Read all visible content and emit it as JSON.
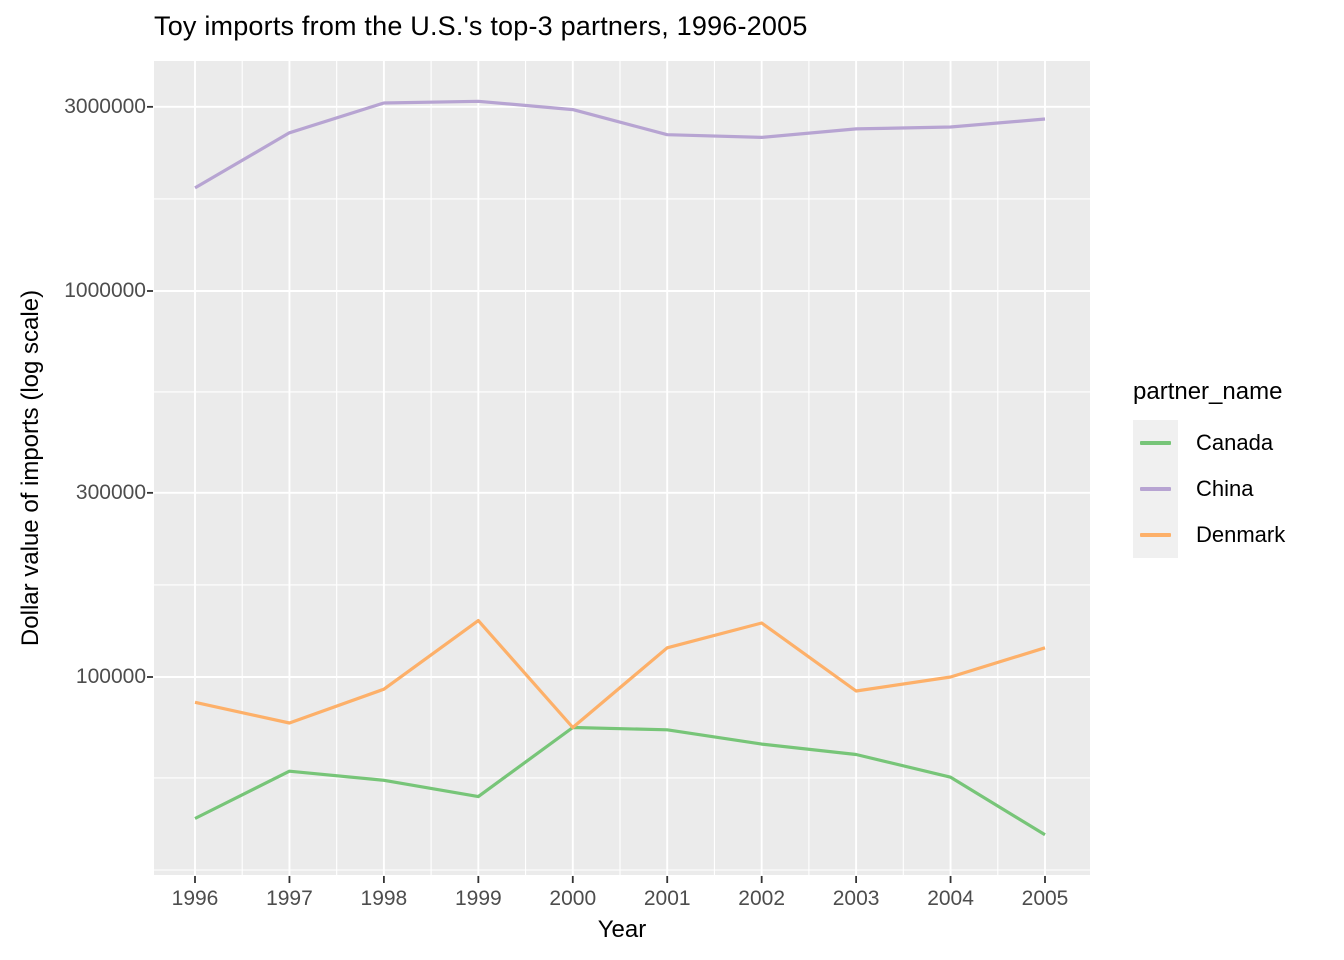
{
  "title": "Toy imports from the U.S.'s top-3 partners, 1996-2005",
  "axes": {
    "x": {
      "title": "Year",
      "tick_labels": [
        "1996",
        "1997",
        "1998",
        "1999",
        "2000",
        "2001",
        "2002",
        "2003",
        "2004",
        "2005"
      ]
    },
    "y": {
      "title": "Dollar value of imports (log scale)",
      "tick_labels": [
        "3000000",
        "1000000",
        "300000",
        "100000"
      ]
    }
  },
  "legend": {
    "title": "partner_name",
    "entries": [
      {
        "label": "Canada",
        "color": "#77c578"
      },
      {
        "label": "China",
        "color": "#b7a4d2"
      },
      {
        "label": "Denmark",
        "color": "#fdb069"
      }
    ]
  },
  "colors": {
    "panel_background": "#ebebeb",
    "gridline": "#ffffff",
    "tick_mark": "#333333",
    "tick_text": "#4d4d4d",
    "title_text": "#000000",
    "legend_key_background": "#f0f0f0"
  },
  "chart_data": {
    "type": "line",
    "title": "Toy imports from the U.S.'s top-3 partners, 1996-2005",
    "xlabel": "Year",
    "ylabel": "Dollar value of imports (log scale)",
    "y_scale": "log10",
    "x": [
      1996,
      1997,
      1998,
      1999,
      2000,
      2001,
      2002,
      2003,
      2004,
      2005
    ],
    "series": [
      {
        "name": "Canada",
        "color": "#77c578",
        "values": [
          43000,
          57000,
          54000,
          49000,
          74000,
          73000,
          67000,
          63000,
          55000,
          39000
        ]
      },
      {
        "name": "China",
        "color": "#b7a4d2",
        "values": [
          1850000,
          2570000,
          3070000,
          3100000,
          2950000,
          2540000,
          2500000,
          2630000,
          2660000,
          2790000
        ]
      },
      {
        "name": "Denmark",
        "color": "#fdb069",
        "values": [
          86000,
          76000,
          93000,
          140000,
          74000,
          119000,
          138000,
          92000,
          100000,
          119000
        ]
      }
    ],
    "y_major_breaks": [
      3000000,
      1000000,
      300000,
      100000
    ],
    "y_minor_breaks": [
      1732051,
      547723,
      173205,
      54772,
      31623
    ],
    "x_minor_breaks": [
      1996.5,
      1997.5,
      1998.5,
      1999.5,
      2000.5,
      2001.5,
      2002.5,
      2003.5,
      2004.5
    ],
    "xlim": [
      1995.55,
      2005.45
    ],
    "ylim": [
      31600,
      3900000
    ],
    "grid": true,
    "legend_position": "right",
    "legend_title": "partner_name"
  }
}
